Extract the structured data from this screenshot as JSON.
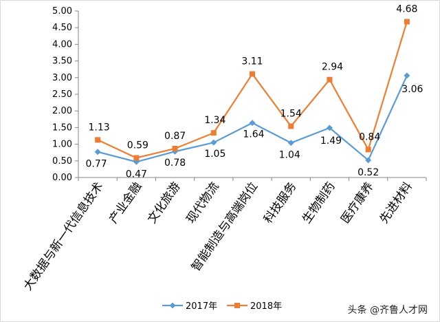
{
  "chart_data": {
    "type": "line",
    "title": "",
    "xlabel": "",
    "ylabel": "",
    "ylim": [
      0,
      5
    ],
    "yticks": [
      "0.00",
      "0.50",
      "1.00",
      "1.50",
      "2.00",
      "2.50",
      "3.00",
      "3.50",
      "4.00",
      "4.50",
      "5.00"
    ],
    "grid": false,
    "legend": "bottom",
    "categories": [
      "大数据与新一代信息技术",
      "产业金融",
      "文化旅游",
      "现代物流",
      "智能制造与高端岗位",
      "科技服务",
      "生物制药",
      "医疗康养",
      "先进材料"
    ],
    "series": [
      {
        "name": "2017年",
        "color": "#5B9BD5",
        "marker": "diamond",
        "values": [
          0.77,
          0.47,
          0.78,
          1.05,
          1.64,
          1.04,
          1.49,
          0.52,
          3.06
        ],
        "labels": [
          "0.77",
          "0.47",
          "0.78",
          "1.05",
          "1.64",
          "1.04",
          "1.49",
          "0.52",
          "3.06"
        ]
      },
      {
        "name": "2018年",
        "color": "#ED7D31",
        "marker": "square",
        "values": [
          1.13,
          0.59,
          0.87,
          1.34,
          3.11,
          1.54,
          2.94,
          0.84,
          4.68
        ],
        "labels": [
          "1.13",
          "0.59",
          "0.87",
          "1.34",
          "3.11",
          "1.54",
          "2.94",
          "0.84",
          "4.68"
        ]
      }
    ]
  },
  "watermark": "头条 @齐鲁人才网"
}
